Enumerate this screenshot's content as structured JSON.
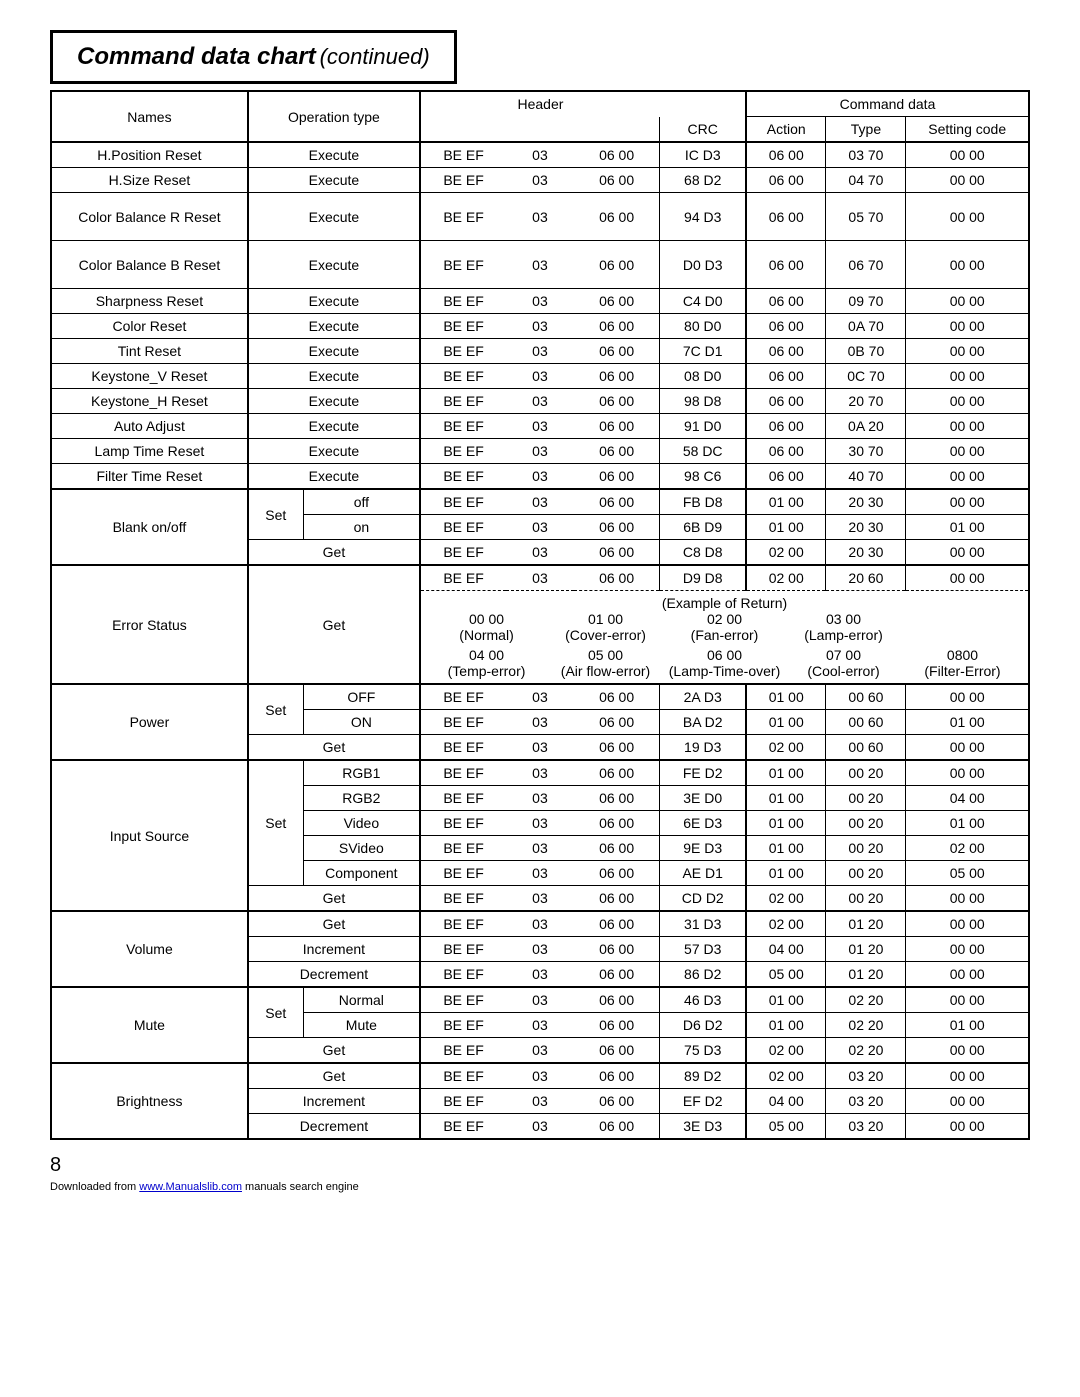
{
  "title": {
    "main": "Command data chart",
    "cont": "(continued)"
  },
  "headers": {
    "names": "Names",
    "operation": "Operation type",
    "header": "Header",
    "crc": "CRC",
    "command_data": "Command data",
    "action": "Action",
    "type": "Type",
    "setting_code": "Setting code"
  },
  "ops": {
    "execute": "Execute",
    "set": "Set",
    "get": "Get",
    "increment": "Increment",
    "decrement": "Decrement",
    "off": "off",
    "on": "on",
    "OFF": "OFF",
    "ON": "ON",
    "rgb1": "RGB1",
    "rgb2": "RGB2",
    "video": "Video",
    "svideo": "SVideo",
    "component": "Component",
    "normal": "Normal",
    "mute": "Mute"
  },
  "names": {
    "hposreset": "H.Position Reset",
    "hsizereset": "H.Size Reset",
    "cbR": "Color Balance R Reset",
    "cbB": "Color Balance B Reset",
    "sharpreset": "Sharpness Reset",
    "colorreset": "Color Reset",
    "tintreset": "Tint Reset",
    "keyV": "Keystone_V Reset",
    "keyH": "Keystone_H Reset",
    "autoadj": "Auto Adjust",
    "lampreset": "Lamp Time Reset",
    "filterreset": "Filter Time Reset",
    "blank": "Blank on/off",
    "errstatus": "Error Status",
    "power": "Power",
    "input": "Input Source",
    "volume": "Volume",
    "mute": "Mute",
    "brightness": "Brightness"
  },
  "be_ef": "BE  EF",
  "h2": "03",
  "h3": "06  00",
  "rows": {
    "hposreset": {
      "crc": "IC  D3",
      "act": "06  00",
      "type": "03  70",
      "set": "00  00"
    },
    "hsizereset": {
      "crc": "68  D2",
      "act": "06  00",
      "type": "04  70",
      "set": "00  00"
    },
    "cbR": {
      "crc": "94  D3",
      "act": "06  00",
      "type": "05  70",
      "set": "00  00"
    },
    "cbB": {
      "crc": "D0  D3",
      "act": "06  00",
      "type": "06  70",
      "set": "00  00"
    },
    "sharpreset": {
      "crc": "C4  D0",
      "act": "06  00",
      "type": "09  70",
      "set": "00  00"
    },
    "colorreset": {
      "crc": "80  D0",
      "act": "06  00",
      "type": "0A  70",
      "set": "00  00"
    },
    "tintreset": {
      "crc": "7C  D1",
      "act": "06  00",
      "type": "0B  70",
      "set": "00  00"
    },
    "keyV": {
      "crc": "08  D0",
      "act": "06  00",
      "type": "0C  70",
      "set": "00  00"
    },
    "keyH": {
      "crc": "98  D8",
      "act": "06  00",
      "type": "20  70",
      "set": "00  00"
    },
    "autoadj": {
      "crc": "91  D0",
      "act": "06  00",
      "type": "0A  20",
      "set": "00  00"
    },
    "lampreset": {
      "crc": "58  DC",
      "act": "06  00",
      "type": "30  70",
      "set": "00  00"
    },
    "filterreset": {
      "crc": "98  C6",
      "act": "06  00",
      "type": "40  70",
      "set": "00  00"
    },
    "blank_off": {
      "crc": "FB  D8",
      "act": "01  00",
      "type": "20  30",
      "set": "00  00"
    },
    "blank_on": {
      "crc": "6B  D9",
      "act": "01  00",
      "type": "20  30",
      "set": "01  00"
    },
    "blank_get": {
      "crc": "C8  D8",
      "act": "02  00",
      "type": "20  30",
      "set": "00  00"
    },
    "errstatus": {
      "crc": "D9  D8",
      "act": "02  00",
      "type": "20  60",
      "set": "00  00"
    },
    "power_off": {
      "crc": "2A  D3",
      "act": "01  00",
      "type": "00  60",
      "set": "00  00"
    },
    "power_on": {
      "crc": "BA  D2",
      "act": "01  00",
      "type": "00  60",
      "set": "01  00"
    },
    "power_get": {
      "crc": "19  D3",
      "act": "02  00",
      "type": "00  60",
      "set": "00  00"
    },
    "in_rgb1": {
      "crc": "FE  D2",
      "act": "01  00",
      "type": "00  20",
      "set": "00  00"
    },
    "in_rgb2": {
      "crc": "3E  D0",
      "act": "01  00",
      "type": "00  20",
      "set": "04  00"
    },
    "in_video": {
      "crc": "6E  D3",
      "act": "01  00",
      "type": "00  20",
      "set": "01  00"
    },
    "in_svideo": {
      "crc": "9E  D3",
      "act": "01  00",
      "type": "00  20",
      "set": "02  00"
    },
    "in_comp": {
      "crc": "AE  D1",
      "act": "01  00",
      "type": "00  20",
      "set": "05  00"
    },
    "in_get": {
      "crc": "CD  D2",
      "act": "02  00",
      "type": "00  20",
      "set": "00  00"
    },
    "vol_get": {
      "crc": "31  D3",
      "act": "02  00",
      "type": "01  20",
      "set": "00  00"
    },
    "vol_inc": {
      "crc": "57  D3",
      "act": "04  00",
      "type": "01  20",
      "set": "00  00"
    },
    "vol_dec": {
      "crc": "86  D2",
      "act": "05  00",
      "type": "01  20",
      "set": "00  00"
    },
    "mute_norm": {
      "crc": "46  D3",
      "act": "01  00",
      "type": "02  20",
      "set": "00  00"
    },
    "mute_mute": {
      "crc": "D6  D2",
      "act": "01  00",
      "type": "02  20",
      "set": "01  00"
    },
    "mute_get": {
      "crc": "75  D3",
      "act": "02  00",
      "type": "02  20",
      "set": "00  00"
    },
    "bri_get": {
      "crc": "89  D2",
      "act": "02  00",
      "type": "03  20",
      "set": "00  00"
    },
    "bri_inc": {
      "crc": "EF  D2",
      "act": "04  00",
      "type": "03  20",
      "set": "00  00"
    },
    "bri_dec": {
      "crc": "3E  D3",
      "act": "05  00",
      "type": "03  20",
      "set": "00  00"
    }
  },
  "example": {
    "title": "(Example of Return)",
    "r1": [
      {
        "c": "00  00",
        "l": "(Normal)"
      },
      {
        "c": "01  00",
        "l": "(Cover-error)"
      },
      {
        "c": "02  00",
        "l": "(Fan-error)"
      },
      {
        "c": "03  00",
        "l": "(Lamp-error)"
      },
      {
        "c": "",
        "l": ""
      }
    ],
    "r2": [
      {
        "c": "04  00",
        "l": "(Temp-error)"
      },
      {
        "c": "05  00",
        "l": "(Air flow-error)"
      },
      {
        "c": "06  00",
        "l": "(Lamp-Time-over)"
      },
      {
        "c": "07  00",
        "l": "(Cool-error)"
      },
      {
        "c": "0800",
        "l": "(Filter-Error)"
      }
    ]
  },
  "page_num": "8",
  "footer": {
    "pre": "Downloaded from ",
    "link": "www.Manualslib.com",
    "post": " manuals search engine"
  }
}
